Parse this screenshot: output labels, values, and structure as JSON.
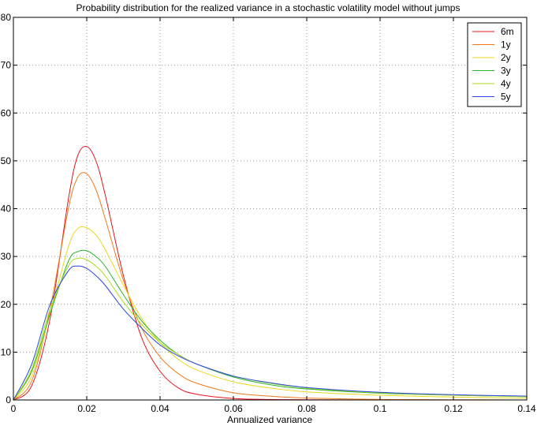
{
  "chart_data": {
    "type": "line",
    "title": "Probability distribution for the realized variance in a stochastic volatility model without jumps",
    "xlabel": "Annualized variance",
    "ylabel": "",
    "xlim": [
      0,
      0.14
    ],
    "ylim": [
      0,
      80
    ],
    "xticks": [
      0,
      0.02,
      0.04,
      0.06,
      0.08,
      0.1,
      0.12,
      0.14
    ],
    "xtick_labels": [
      "0",
      "0.02",
      "0.04",
      "0.06",
      "0.08",
      "0.1",
      "0.12",
      "0.14"
    ],
    "yticks": [
      0,
      10,
      20,
      30,
      40,
      50,
      60,
      70,
      80
    ],
    "ytick_labels": [
      "0",
      "10",
      "20",
      "30",
      "40",
      "50",
      "60",
      "70",
      "80"
    ],
    "grid": true,
    "legend_position": "top-right",
    "x": [
      0,
      0.005,
      0.01,
      0.015,
      0.0175,
      0.02,
      0.0225,
      0.025,
      0.03,
      0.035,
      0.04,
      0.045,
      0.05,
      0.06,
      0.07,
      0.08,
      0.1,
      0.12,
      0.14
    ],
    "series": [
      {
        "name": "6m",
        "color": "#e8141c",
        "values": [
          0,
          3,
          17,
          42,
          51,
          53,
          50,
          43,
          26,
          13,
          6,
          2.5,
          1.2,
          0.3,
          0.1,
          0.05,
          0,
          0,
          0
        ]
      },
      {
        "name": "1y",
        "color": "#f07818",
        "values": [
          0,
          4,
          19,
          40,
          46.5,
          47.3,
          44,
          38,
          25,
          15,
          9,
          5.5,
          3.5,
          1.5,
          0.8,
          0.4,
          0.1,
          0.05,
          0
        ]
      },
      {
        "name": "2y",
        "color": "#e8d81c",
        "values": [
          0,
          5,
          18,
          32,
          35.8,
          36,
          34.5,
          31.5,
          24,
          17,
          12,
          8.5,
          6.3,
          3.8,
          2.5,
          1.7,
          1,
          0.6,
          0.4
        ]
      },
      {
        "name": "3y",
        "color": "#2ab428",
        "values": [
          0,
          6,
          18,
          29,
          31,
          31.2,
          30,
          28,
          22,
          16.5,
          12.5,
          9.5,
          7.5,
          4.8,
          3.2,
          2.3,
          1.4,
          1,
          0.7
        ]
      },
      {
        "name": "4y",
        "color": "#a8dc1c",
        "values": [
          0,
          6.5,
          19,
          28,
          29.6,
          29.3,
          28,
          26,
          20.5,
          15.8,
          12,
          9.5,
          7.5,
          5,
          3.5,
          2.5,
          1.5,
          1,
          0.7
        ]
      },
      {
        "name": "5y",
        "color": "#2c44e8",
        "values": [
          0,
          7.5,
          20,
          27,
          28,
          27.5,
          26,
          24,
          19,
          15,
          11.5,
          9.2,
          7.5,
          5,
          3.6,
          2.6,
          1.6,
          1.1,
          0.8
        ]
      }
    ]
  }
}
